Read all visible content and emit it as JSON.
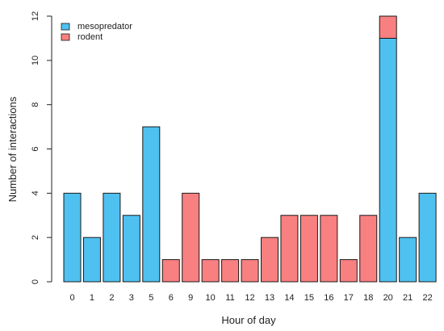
{
  "chart_data": {
    "type": "bar",
    "stacked": true,
    "title": "",
    "xlabel": "Hour of day",
    "ylabel": "Number of interactions",
    "ylim": [
      0,
      12
    ],
    "yticks": [
      0,
      2,
      4,
      6,
      8,
      10,
      12
    ],
    "categories": [
      "0",
      "1",
      "2",
      "3",
      "5",
      "6",
      "9",
      "10",
      "11",
      "12",
      "13",
      "14",
      "15",
      "16",
      "17",
      "18",
      "20",
      "21",
      "22"
    ],
    "series": [
      {
        "name": "mesopredator",
        "color": "#4fc1f0",
        "values": [
          4,
          2,
          4,
          3,
          7,
          0,
          0,
          0,
          0,
          0,
          0,
          0,
          0,
          0,
          0,
          0,
          11,
          2,
          4
        ]
      },
      {
        "name": "rodent",
        "color": "#f98080",
        "values": [
          0,
          0,
          0,
          0,
          0,
          1,
          4,
          1,
          1,
          1,
          2,
          3,
          3,
          3,
          1,
          3,
          1,
          0,
          0
        ]
      }
    ],
    "legend_position": "top-left",
    "grid": false
  }
}
